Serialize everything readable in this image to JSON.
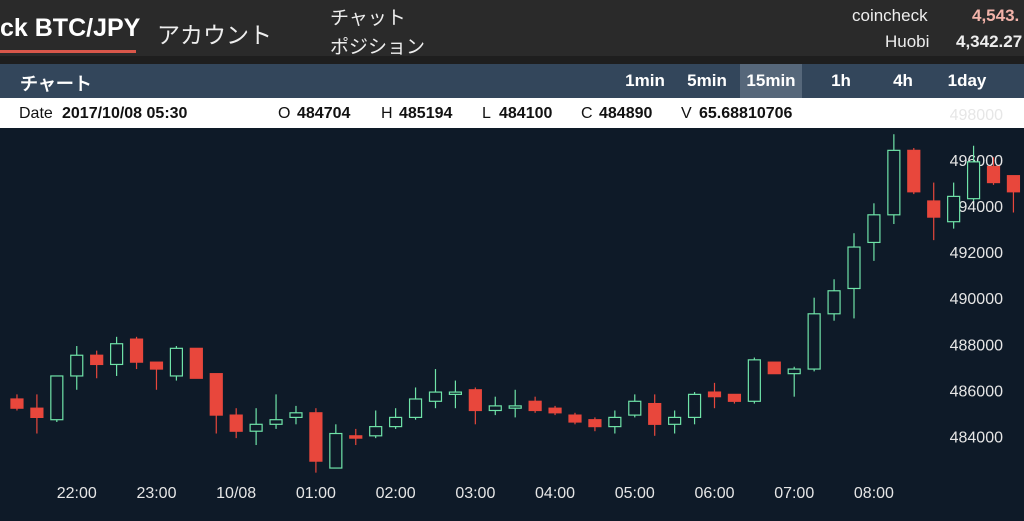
{
  "header": {
    "brand": "ck BTC/JPY",
    "nav": [
      "アカウント",
      "チャット",
      "ポジション"
    ],
    "prices": [
      {
        "exchange": "coincheck",
        "price": "4,543."
      },
      {
        "exchange": "Huobi",
        "price": "4,342.27"
      }
    ]
  },
  "toolbar": {
    "title": "チャート",
    "timeframes": [
      "1min",
      "5min",
      "15min",
      "1h",
      "4h",
      "1day"
    ],
    "active": "15min"
  },
  "info": [
    {
      "label": "Date",
      "value": "2017/10/08 05:30"
    },
    {
      "label": "O",
      "value": "484704"
    },
    {
      "label": "H",
      "value": "485194"
    },
    {
      "label": "L",
      "value": "484100"
    },
    {
      "label": "C",
      "value": "484890"
    },
    {
      "label": "V",
      "value": "65.68810706"
    }
  ],
  "chart_data": {
    "type": "candlestick",
    "categories": [
      null,
      null,
      null,
      "22:00",
      null,
      null,
      null,
      "23:00",
      null,
      null,
      null,
      "10/08",
      null,
      null,
      null,
      "01:00",
      null,
      null,
      null,
      "02:00",
      null,
      null,
      null,
      "03:00",
      null,
      null,
      null,
      "04:00",
      null,
      null,
      null,
      "05:00",
      null,
      null,
      null,
      "06:00",
      null,
      null,
      null,
      "07:00",
      null,
      null,
      null,
      "08:00",
      null,
      null,
      null,
      null,
      null,
      null,
      null
    ],
    "open": [
      485700,
      485300,
      484800,
      486700,
      487600,
      487200,
      488300,
      487300,
      486700,
      487900,
      486800,
      485000,
      484300,
      484600,
      484900,
      485100,
      482700,
      484100,
      484100,
      484500,
      484900,
      485600,
      485900,
      486100,
      485200,
      485300,
      485600,
      485300,
      485000,
      484800,
      484500,
      485000,
      485500,
      484600,
      484900,
      486000,
      485900,
      485600,
      487300,
      486800,
      487000,
      489400,
      490500,
      492500,
      493700,
      496500,
      494300,
      493400,
      494400,
      495800,
      495400
    ],
    "high": [
      485900,
      485900,
      486700,
      488000,
      487800,
      488400,
      488400,
      487300,
      488000,
      487900,
      486800,
      485300,
      485300,
      485900,
      485400,
      485300,
      484600,
      484400,
      485200,
      485300,
      486200,
      487000,
      486500,
      486200,
      485800,
      486100,
      485800,
      485400,
      485100,
      484900,
      485200,
      485900,
      485900,
      485200,
      486000,
      486400,
      485900,
      487500,
      487300,
      487100,
      490100,
      490900,
      492900,
      494200,
      497200,
      496600,
      495100,
      495100,
      496700,
      496200,
      495400
    ],
    "low": [
      485200,
      484200,
      484700,
      486100,
      486600,
      486700,
      487000,
      486100,
      486500,
      486600,
      484200,
      484000,
      483700,
      484400,
      484600,
      482500,
      482700,
      483700,
      484000,
      484400,
      484800,
      485300,
      485300,
      484600,
      485000,
      484900,
      485100,
      485000,
      484600,
      484300,
      484200,
      484900,
      484100,
      484200,
      484600,
      485300,
      485500,
      485500,
      486800,
      485800,
      486900,
      489100,
      489200,
      491700,
      493300,
      494600,
      492600,
      493100,
      494300,
      495000,
      493800
    ],
    "close": [
      485300,
      484900,
      486700,
      487600,
      487200,
      488100,
      487300,
      487000,
      487900,
      486600,
      485000,
      484300,
      484600,
      484800,
      485100,
      483000,
      484200,
      484000,
      484500,
      484900,
      485700,
      486000,
      486000,
      485200,
      485400,
      485400,
      485200,
      485100,
      484700,
      484500,
      484900,
      485600,
      484600,
      484900,
      485900,
      485800,
      485600,
      487400,
      486800,
      487000,
      489400,
      490400,
      492300,
      493700,
      496500,
      494700,
      493600,
      494500,
      496000,
      495100,
      494700
    ],
    "up_color": "#6fe3a8",
    "down_color": "#e8473c",
    "ylim": [
      480400,
      498600
    ],
    "yticks": [
      484000,
      486000,
      488000,
      490000,
      492000,
      494000,
      496000,
      498000
    ],
    "grid": false
  }
}
